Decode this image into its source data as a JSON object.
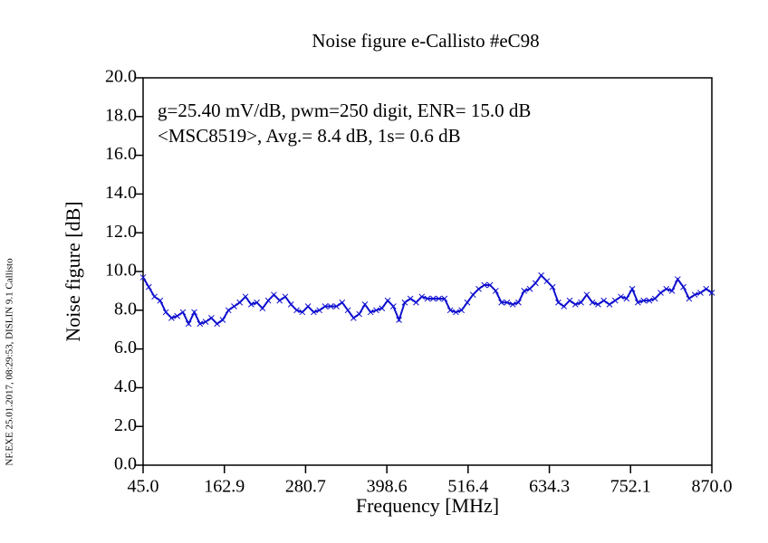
{
  "chart_data": {
    "type": "line",
    "title": "Noise figure e-Callisto #eC98",
    "annotations": [
      "g=25.40 mV/dB, pwm=250 digit, ENR= 15.0 dB",
      "<MSC8519>, Avg.= 8.4 dB, 1s= 0.6 dB"
    ],
    "footer": "NF.EXE 25.01.2017, 08:29:53, DISLIN 9.1 Callisto",
    "xlabel": "Frequency [MHz]",
    "ylabel": "Noise figure [dB]",
    "xlim": [
      45,
      870
    ],
    "ylim": [
      0,
      20
    ],
    "xticks": [
      {
        "value": 45,
        "label": "45.0"
      },
      162.9,
      280.7,
      398.6,
      516.4,
      634.3,
      752.1,
      {
        "value": 870,
        "label": "870.0"
      }
    ],
    "yticks": [
      {
        "value": 0,
        "label": "0.0"
      },
      {
        "value": 2,
        "label": "2.0"
      },
      {
        "value": 4,
        "label": "4.0"
      },
      {
        "value": 6,
        "label": "6.0"
      },
      {
        "value": 8,
        "label": "8.0"
      },
      {
        "value": 10,
        "label": "10.0"
      },
      {
        "value": 12,
        "label": "12.0"
      },
      {
        "value": 14,
        "label": "14.0"
      },
      {
        "value": 16,
        "label": "16.0"
      },
      {
        "value": 18,
        "label": "18.0"
      },
      {
        "value": 20,
        "label": "20.0"
      }
    ],
    "color": "#1010d0",
    "x": [
      45,
      53.25,
      61.5,
      69.75,
      78,
      86.25,
      94.5,
      102.75,
      111,
      119.25,
      127.5,
      135.75,
      144,
      152.25,
      160.5,
      168.75,
      177,
      185.25,
      193.5,
      201.75,
      210,
      218.25,
      226.5,
      234.75,
      243,
      251.25,
      259.5,
      267.75,
      276,
      284.25,
      292.5,
      300.75,
      309,
      317.25,
      325.5,
      333.75,
      342,
      350.25,
      358.5,
      366.75,
      375,
      383.25,
      391.5,
      399.75,
      408,
      416.25,
      424.5,
      432.75,
      441,
      449.25,
      457.5,
      465.75,
      474,
      482.25,
      490.5,
      498.75,
      507,
      515.25,
      523.5,
      531.75,
      540,
      548.25,
      556.5,
      564.75,
      573,
      581.25,
      589.5,
      597.75,
      606,
      614.25,
      622.5,
      630.75,
      639,
      647.25,
      655.5,
      663.75,
      672,
      680.25,
      688.5,
      696.75,
      705,
      713.25,
      721.5,
      729.75,
      738,
      746.25,
      754.5,
      762.75,
      771,
      779.25,
      787.5,
      795.75,
      804,
      812.25,
      820.5,
      828.75,
      837,
      845.25,
      853.5,
      861.75,
      870
    ],
    "values": [
      9.7,
      9.2,
      8.7,
      8.5,
      7.9,
      7.6,
      7.7,
      7.9,
      7.3,
      7.9,
      7.3,
      7.4,
      7.6,
      7.3,
      7.5,
      8.0,
      8.2,
      8.4,
      8.7,
      8.3,
      8.4,
      8.1,
      8.5,
      8.8,
      8.5,
      8.7,
      8.3,
      8.0,
      7.9,
      8.2,
      7.9,
      8.0,
      8.2,
      8.2,
      8.2,
      8.4,
      8.0,
      7.6,
      7.8,
      8.3,
      7.9,
      8.0,
      8.1,
      8.5,
      8.2,
      7.5,
      8.4,
      8.6,
      8.4,
      8.7,
      8.6,
      8.6,
      8.6,
      8.6,
      8.0,
      7.9,
      8.0,
      8.4,
      8.8,
      9.1,
      9.3,
      9.3,
      9.0,
      8.4,
      8.4,
      8.3,
      8.4,
      9.0,
      9.1,
      9.4,
      9.8,
      9.5,
      9.2,
      8.4,
      8.2,
      8.5,
      8.3,
      8.4,
      8.8,
      8.4,
      8.3,
      8.5,
      8.3,
      8.5,
      8.7,
      8.6,
      9.1,
      8.4,
      8.5,
      8.5,
      8.6,
      8.9,
      9.1,
      9.0,
      9.6,
      9.2,
      8.6,
      8.8,
      8.9,
      9.1,
      8.9
    ]
  }
}
